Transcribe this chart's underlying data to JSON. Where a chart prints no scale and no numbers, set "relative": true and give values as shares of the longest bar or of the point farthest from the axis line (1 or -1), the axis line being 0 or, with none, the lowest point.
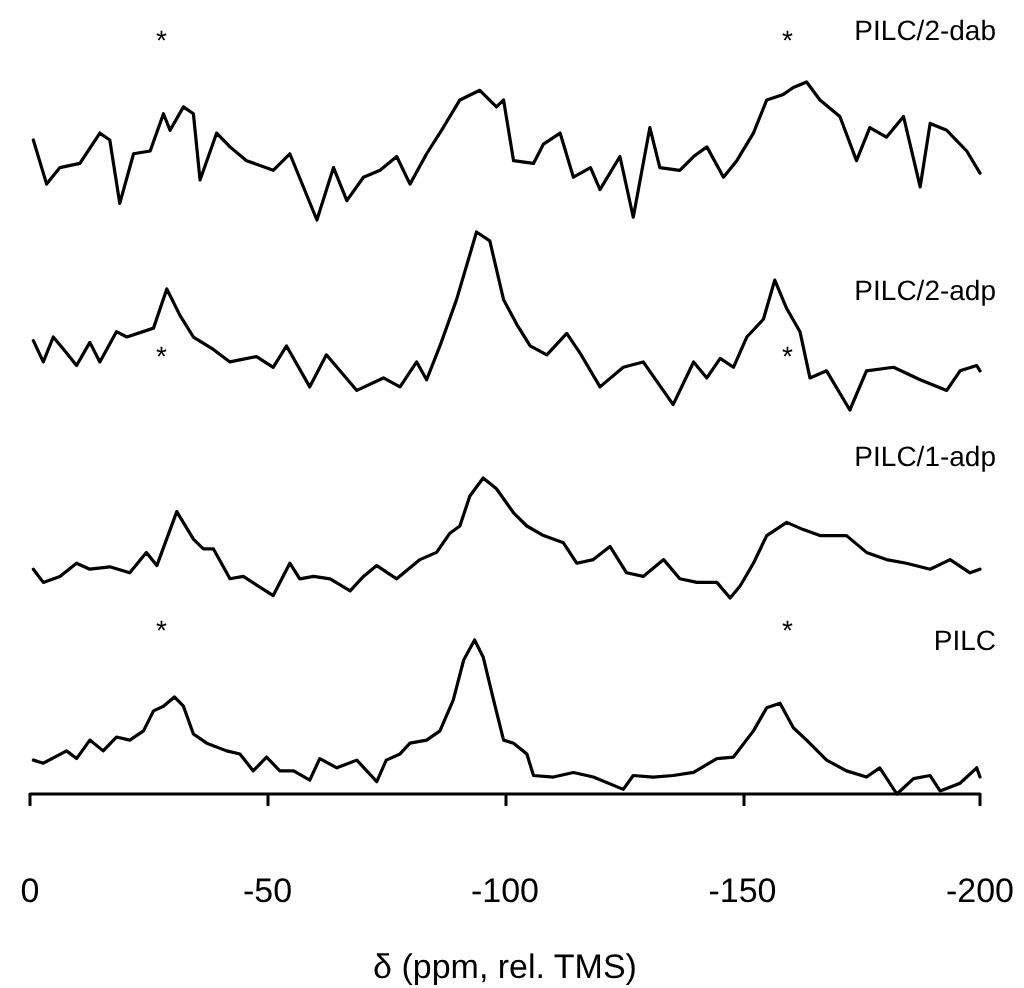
{
  "chart_data": [
    {
      "type": "line",
      "relative": true,
      "xlim": [
        0,
        -200
      ],
      "tick_labels": false,
      "marker": "none",
      "line_style": "solid",
      "legend": false,
      "x": [
        -0.7,
        -3.5,
        -6.3,
        -10.5,
        -14.7,
        -16.8,
        -18.9,
        -21.8,
        -25.3,
        -28.1,
        -29.5,
        -32.3,
        -34.4,
        -35.8,
        -39.3,
        -42.1,
        -45.6,
        -51.2,
        -54.7,
        -60.4,
        -63.9,
        -66.7,
        -70.2,
        -73.7,
        -77.2,
        -80,
        -83.5,
        -87,
        -90.5,
        -94.7,
        -98.2,
        -99.7,
        -101.8,
        -106,
        -108.1,
        -111.6,
        -114.4,
        -118,
        -120,
        -124.2,
        -127,
        -130.5,
        -132.6,
        -136.8,
        -139.7,
        -142.5,
        -146,
        -148.8,
        -152.3,
        -155.1,
        -158.6,
        -160.7,
        -163.5,
        -166.3,
        -170.5,
        -174,
        -176.8,
        -180.3,
        -183.9,
        -187.4,
        -189.5,
        -193,
        -197.2,
        -200
      ],
      "series": [
        {
          "name": "PILC/2-dab",
          "color": "#000000",
          "values": [
            0.58,
            0.26,
            0.38,
            0.41,
            0.63,
            0.58,
            0.12,
            0.48,
            0.5,
            0.77,
            0.65,
            0.82,
            0.77,
            0.29,
            0.63,
            0.53,
            0.43,
            0.36,
            0.48,
            0.0,
            0.38,
            0.14,
            0.31,
            0.36,
            0.46,
            0.26,
            0.48,
            0.67,
            0.87,
            0.94,
            0.82,
            0.87,
            0.43,
            0.41,
            0.55,
            0.63,
            0.31,
            0.38,
            0.22,
            0.46,
            0.02,
            0.67,
            0.38,
            0.36,
            0.46,
            0.53,
            0.31,
            0.43,
            0.63,
            0.87,
            0.91,
            0.96,
            1.0,
            0.87,
            0.75,
            0.43,
            0.67,
            0.6,
            0.75,
            0.24,
            0.7,
            0.65,
            0.5,
            0.34
          ]
        }
      ],
      "annotations": [
        "*",
        "*"
      ]
    },
    {
      "type": "line",
      "relative": true,
      "xlim": [
        0,
        -200
      ],
      "tick_labels": false,
      "marker": "none",
      "line_style": "solid",
      "legend": false,
      "x": [
        -0.7,
        -2.8,
        -4.9,
        -7.7,
        -9.8,
        -12.6,
        -14.7,
        -18.2,
        -20.4,
        -26,
        -28.8,
        -31.6,
        -34.4,
        -38.6,
        -42.1,
        -47.7,
        -51.2,
        -54,
        -58.9,
        -62.4,
        -68.8,
        -74.4,
        -77.9,
        -81.4,
        -83.5,
        -86.3,
        -89.8,
        -94,
        -96.8,
        -99.7,
        -102.5,
        -105.3,
        -108.8,
        -113,
        -115.8,
        -120,
        -124.9,
        -129.1,
        -135.4,
        -139.7,
        -142.5,
        -145.3,
        -148.1,
        -150.9,
        -154.4,
        -156.8,
        -159.3,
        -162.1,
        -164.2,
        -167.7,
        -172.6,
        -176.1,
        -181.8,
        -187.4,
        -193,
        -195.8,
        -199.3,
        -200
      ],
      "series": [
        {
          "name": "PILC/2-adp",
          "color": "#000000",
          "values": [
            0.39,
            0.27,
            0.41,
            0.32,
            0.25,
            0.38,
            0.27,
            0.44,
            0.41,
            0.46,
            0.68,
            0.53,
            0.41,
            0.34,
            0.27,
            0.3,
            0.24,
            0.36,
            0.13,
            0.31,
            0.11,
            0.18,
            0.13,
            0.27,
            0.17,
            0.36,
            0.62,
            1.0,
            0.95,
            0.62,
            0.48,
            0.36,
            0.31,
            0.43,
            0.32,
            0.13,
            0.24,
            0.27,
            0.03,
            0.27,
            0.18,
            0.29,
            0.24,
            0.41,
            0.51,
            0.73,
            0.57,
            0.44,
            0.18,
            0.22,
            0.0,
            0.22,
            0.24,
            0.17,
            0.11,
            0.22,
            0.25,
            0.22
          ]
        }
      ],
      "annotations": [
        "*",
        "*"
      ]
    },
    {
      "type": "line",
      "relative": true,
      "xlim": [
        0,
        -200
      ],
      "tick_labels": false,
      "marker": "none",
      "line_style": "solid",
      "legend": false,
      "x": [
        -0.7,
        -2.8,
        -6.3,
        -9.8,
        -12.6,
        -16.8,
        -21,
        -24.5,
        -26.7,
        -30.9,
        -34.4,
        -36.5,
        -38.6,
        -42.1,
        -44.9,
        -51.2,
        -54.7,
        -56.8,
        -59.7,
        -63.2,
        -67.4,
        -70.2,
        -73,
        -77.2,
        -82.1,
        -85.6,
        -88.4,
        -90.5,
        -92.6,
        -95.4,
        -98.2,
        -101.8,
        -104.6,
        -108.1,
        -112.3,
        -115.1,
        -118.6,
        -122.1,
        -125.6,
        -129.1,
        -133.4,
        -136.8,
        -140.4,
        -144.6,
        -147.4,
        -149.5,
        -152.3,
        -155.1,
        -159.3,
        -162.8,
        -166.3,
        -171.9,
        -176.1,
        -180.3,
        -184.5,
        -189.5,
        -193.7,
        -197.9,
        -200
      ],
      "series": [
        {
          "name": "PILC/1-adp",
          "color": "#000000",
          "values": [
            0.24,
            0.13,
            0.18,
            0.29,
            0.24,
            0.26,
            0.21,
            0.38,
            0.27,
            0.72,
            0.49,
            0.41,
            0.41,
            0.16,
            0.18,
            0.02,
            0.29,
            0.16,
            0.18,
            0.16,
            0.06,
            0.18,
            0.27,
            0.16,
            0.32,
            0.38,
            0.54,
            0.6,
            0.85,
            1.0,
            0.91,
            0.71,
            0.6,
            0.52,
            0.46,
            0.29,
            0.32,
            0.43,
            0.21,
            0.18,
            0.32,
            0.16,
            0.13,
            0.13,
            0.0,
            0.1,
            0.29,
            0.52,
            0.63,
            0.57,
            0.52,
            0.52,
            0.38,
            0.32,
            0.29,
            0.24,
            0.32,
            0.21,
            0.24
          ]
        }
      ]
    },
    {
      "type": "line",
      "relative": true,
      "xlim": [
        0,
        -200
      ],
      "xticks": [
        0,
        -50,
        -100,
        -150,
        -200
      ],
      "tick_labels": "x",
      "xlabel": "δ (ppm, rel. TMS)",
      "marker": "none",
      "line_style": "solid",
      "legend": false,
      "x": [
        -0.7,
        -2.8,
        -7.7,
        -9.8,
        -12.6,
        -15.4,
        -18.2,
        -21,
        -23.9,
        -26,
        -28.1,
        -30.4,
        -32.3,
        -34.4,
        -37.2,
        -41.4,
        -44.2,
        -47,
        -49.8,
        -52.6,
        -55.5,
        -58.9,
        -61,
        -64.6,
        -68.8,
        -73,
        -75,
        -77.9,
        -80,
        -83.5,
        -86.3,
        -89.1,
        -91.3,
        -93.6,
        -95.4,
        -97.6,
        -99.7,
        -101.8,
        -104.6,
        -106,
        -110.2,
        -114.4,
        -118.6,
        -124.9,
        -127,
        -131.2,
        -135.4,
        -139.7,
        -144.6,
        -148.1,
        -152.3,
        -155.1,
        -157.9,
        -160.7,
        -163.5,
        -167.7,
        -171.9,
        -176.1,
        -178.9,
        -182.5,
        -186,
        -189.5,
        -191.6,
        -195.8,
        -199.3,
        -200
      ],
      "series": [
        {
          "name": "PILC",
          "color": "#000000",
          "values": [
            0.22,
            0.2,
            0.28,
            0.23,
            0.35,
            0.28,
            0.37,
            0.35,
            0.41,
            0.54,
            0.57,
            0.63,
            0.57,
            0.39,
            0.33,
            0.28,
            0.26,
            0.15,
            0.24,
            0.15,
            0.15,
            0.09,
            0.23,
            0.17,
            0.22,
            0.08,
            0.22,
            0.26,
            0.33,
            0.35,
            0.41,
            0.61,
            0.87,
            1.0,
            0.89,
            0.61,
            0.35,
            0.33,
            0.26,
            0.12,
            0.11,
            0.14,
            0.11,
            0.03,
            0.12,
            0.11,
            0.12,
            0.14,
            0.23,
            0.24,
            0.41,
            0.56,
            0.59,
            0.43,
            0.35,
            0.22,
            0.15,
            0.11,
            0.17,
            0.0,
            0.1,
            0.12,
            0.02,
            0.07,
            0.17,
            0.11
          ]
        }
      ],
      "annotations": [
        "*",
        "*"
      ]
    }
  ]
}
